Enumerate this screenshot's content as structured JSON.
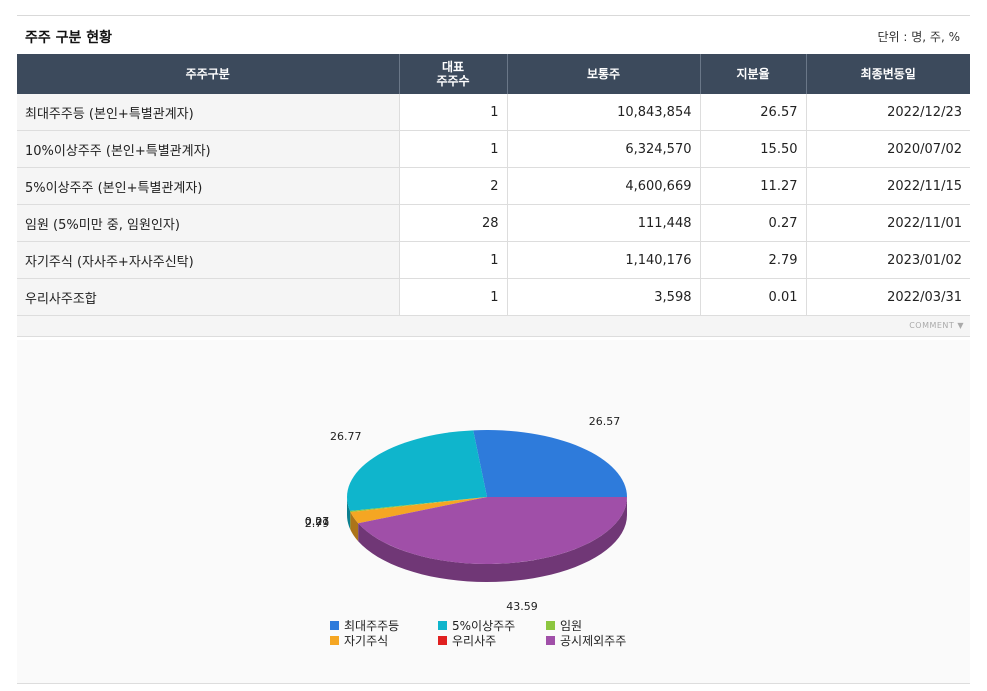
{
  "header": {
    "title": "주주 구분 현황",
    "unit": "단위 : 명, 주, %"
  },
  "table": {
    "columns": [
      "주주구분",
      "대표\n주주수",
      "보통주",
      "지분율",
      "최종변동일"
    ],
    "rows": [
      [
        "최대주주등 (본인+특별관계자)",
        "1",
        "10,843,854",
        "26.57",
        "2022/12/23"
      ],
      [
        "10%이상주주 (본인+특별관계자)",
        "1",
        "6,324,570",
        "15.50",
        "2020/07/02"
      ],
      [
        "5%이상주주 (본인+특별관계자)",
        "2",
        "4,600,669",
        "11.27",
        "2022/11/15"
      ],
      [
        "임원 (5%미만 중, 임원인자)",
        "28",
        "111,448",
        "0.27",
        "2022/11/01"
      ],
      [
        "자기주식 (자사주+자사주신탁)",
        "1",
        "1,140,176",
        "2.79",
        "2023/01/02"
      ],
      [
        "우리사주조합",
        "1",
        "3,598",
        "0.01",
        "2022/03/31"
      ]
    ],
    "comment_label": "COMMENT ▼"
  },
  "chart_data": {
    "type": "pie",
    "slices": [
      {
        "name": "최대주주등",
        "value": 26.57,
        "color": "#2e7bdb"
      },
      {
        "name": "5%이상주주",
        "value": 26.77,
        "color": "#0fb5cc"
      },
      {
        "name": "임원",
        "value": 0.27,
        "color": "#8cc63f"
      },
      {
        "name": "자기주식",
        "value": 2.79,
        "color": "#f5a623"
      },
      {
        "name": "우리사주",
        "value": 0.01,
        "color": "#e02020"
      },
      {
        "name": "공시제외주주",
        "value": 43.59,
        "color": "#a04fa8"
      }
    ],
    "legend_position": "bottom"
  }
}
